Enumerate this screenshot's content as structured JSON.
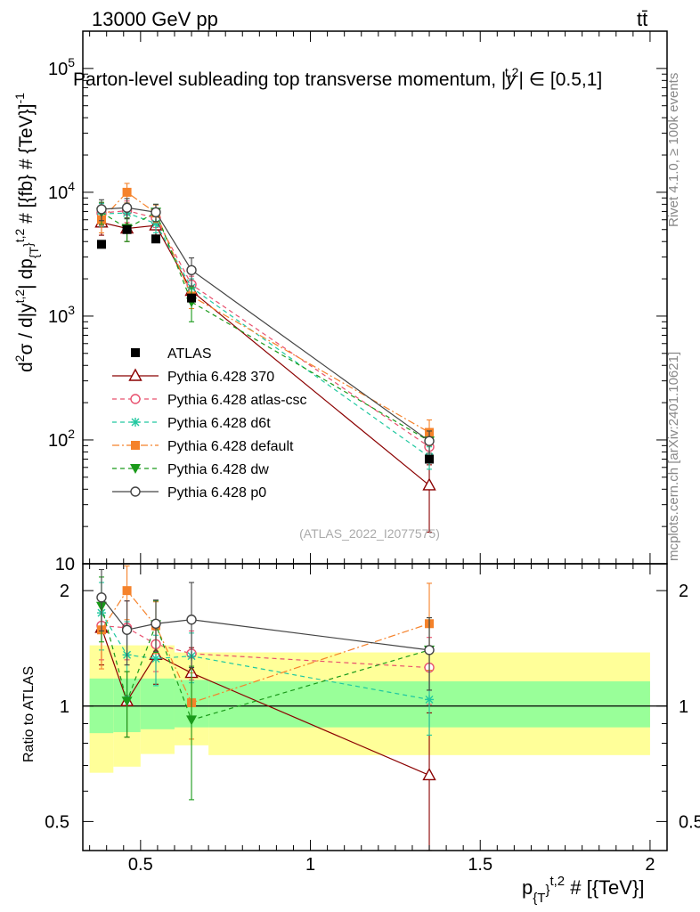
{
  "header": {
    "left": "13000 GeV pp",
    "right": "tt̄"
  },
  "side_labels": {
    "rivet": "Rivet 4.1.0, ≥ 100k events",
    "mcplots": "mcplots.cern.ch [arXiv:2401.10621]"
  },
  "watermark": "(ATLAS_2022_I2077575)",
  "colors": {
    "ATLAS": "#000000",
    "p370": "#8b0000",
    "atlas_csc": "#e8506e",
    "d6t": "#20c8a0",
    "default": "#f5822a",
    "dw": "#1a9a1a",
    "p0": "#444444",
    "band_inner": "#99ff99",
    "band_outer": "#ffff99"
  },
  "chart_data": [
    {
      "type": "scatter",
      "panel": "main",
      "title": "Parton-level subleading top transverse momentum, |y^{t,2}| ∈ [0.5,1]",
      "title_parts": {
        "main": "Parton-level subleading top transverse momentum, |",
        "yvar": "y",
        "ysup": "t,2",
        "tail": "| ∈ [0.5,1]"
      },
      "ylabel": "d²σ / d|y^{t,2}| dp_{T}^{t,2} # [{fb} # {TeV}]^{-1}",
      "ylabel_parts": {
        "a": "d",
        "a_sup": "2",
        "b": "σ / d|y",
        "b_sup": "t,2",
        "c": "| dp",
        "c_sub": "{T",
        "c_sup": "}",
        "c_sup2": "t,2",
        "d": " # [{fb} # {TeV}]",
        "d_sup": "-1"
      },
      "yscale": "log",
      "ylim": [
        10,
        200000
      ],
      "xlim": [
        0.33,
        2.05
      ],
      "ytick_labels": [
        {
          "value": 10,
          "base": "10",
          "exp": ""
        },
        {
          "value": 100,
          "base": "10",
          "exp": "2"
        },
        {
          "value": 1000,
          "base": "10",
          "exp": "3"
        },
        {
          "value": 10000,
          "base": "10",
          "exp": "4"
        },
        {
          "value": 100000,
          "base": "10",
          "exp": "5"
        }
      ],
      "x": [
        0.385,
        0.46,
        0.545,
        0.65,
        1.35
      ],
      "series": [
        {
          "name": "ATLAS",
          "key": "ATLAS",
          "marker": "square-filled",
          "line": "none",
          "values": [
            3800,
            5000,
            4200,
            1400,
            70
          ],
          "err_lo": [
            0,
            0,
            0,
            0,
            0
          ],
          "err_hi": [
            0,
            0,
            0,
            0,
            0
          ]
        },
        {
          "name": "Pythia 6.428 370",
          "key": "p370",
          "marker": "triangle-open",
          "line": "solid",
          "values": [
            5700,
            5100,
            5400,
            1600,
            43
          ],
          "err_lo": [
            1200,
            1100,
            900,
            300,
            25
          ],
          "err_hi": [
            1200,
            1100,
            900,
            300,
            20
          ]
        },
        {
          "name": "Pythia 6.428 atlas-csc",
          "key": "atlas_csc",
          "marker": "circle-open",
          "line": "dashed",
          "values": [
            6800,
            7100,
            6200,
            1800,
            88
          ],
          "err_lo": [
            1400,
            1400,
            1000,
            300,
            18
          ],
          "err_hi": [
            1400,
            1400,
            1000,
            300,
            18
          ]
        },
        {
          "name": "Pythia 6.428 d6t",
          "key": "d6t",
          "marker": "star",
          "line": "dashed",
          "values": [
            6700,
            6800,
            5600,
            1700,
            73
          ],
          "err_lo": [
            1400,
            1400,
            900,
            300,
            15
          ],
          "err_hi": [
            1400,
            1400,
            900,
            300,
            15
          ]
        },
        {
          "name": "Pythia 6.428 default",
          "key": "default",
          "marker": "square-filled",
          "line": "dashdot",
          "values": [
            6000,
            10000,
            6800,
            1450,
            115
          ],
          "err_lo": [
            1300,
            1800,
            1100,
            300,
            25
          ],
          "err_hi": [
            1300,
            1800,
            1100,
            300,
            30
          ]
        },
        {
          "name": "Pythia 6.428 dw",
          "key": "dw",
          "marker": "triangle-down-filled",
          "line": "dashed",
          "values": [
            6900,
            5100,
            6900,
            1300,
            98
          ],
          "err_lo": [
            1400,
            1100,
            1100,
            400,
            20
          ],
          "err_hi": [
            1400,
            1100,
            1100,
            400,
            20
          ]
        },
        {
          "name": "Pythia 6.428 p0",
          "key": "p0",
          "marker": "circle-open",
          "line": "solid",
          "values": [
            7300,
            7500,
            6900,
            2350,
            98
          ],
          "err_lo": [
            1400,
            1400,
            1100,
            600,
            20
          ],
          "err_hi": [
            1400,
            1400,
            1100,
            600,
            20
          ]
        }
      ]
    },
    {
      "type": "scatter",
      "panel": "ratio",
      "ylabel": "Ratio to ATLAS",
      "xlabel": "p_{T}^{t,2} # [{TeV}]",
      "xlabel_parts": {
        "a": "p",
        "a_sub": "{T",
        "a_sup_close": "}",
        "a_sup": "t,2",
        "b": " # [{TeV}]"
      },
      "yscale": "log",
      "ylim": [
        0.42,
        2.35
      ],
      "xlim": [
        0.33,
        2.05
      ],
      "xtick_labels": [
        "0.5",
        "1",
        "1.5",
        "2"
      ],
      "xtick_values": [
        0.5,
        1,
        1.5,
        2
      ],
      "ytick_labels": [
        "0.5",
        "1",
        "2"
      ],
      "ytick_values": [
        0.5,
        1,
        2
      ],
      "bands": {
        "edges": [
          0.35,
          0.42,
          0.5,
          0.6,
          0.7,
          2.0
        ],
        "inner_lo": [
          0.85,
          0.855,
          0.87,
          0.88,
          0.88
        ],
        "inner_hi": [
          1.18,
          1.18,
          1.18,
          1.17,
          1.16
        ],
        "outer_lo": [
          0.67,
          0.695,
          0.75,
          0.79,
          0.745
        ],
        "outer_hi": [
          1.44,
          1.44,
          1.44,
          1.38,
          1.38
        ]
      },
      "x": [
        0.385,
        0.46,
        0.545,
        0.65,
        1.35
      ],
      "series": [
        {
          "key": "p370",
          "values": [
            1.6,
            1.03,
            1.36,
            1.22,
            0.66
          ],
          "err_lo": [
            0.32,
            0.2,
            0.22,
            0.2,
            0.3
          ],
          "err_hi": [
            0.32,
            0.2,
            0.22,
            0.2,
            0.3
          ]
        },
        {
          "key": "atlas_csc",
          "values": [
            1.62,
            1.6,
            1.45,
            1.37,
            1.26
          ],
          "err_lo": [
            0.3,
            0.28,
            0.22,
            0.2,
            0.25
          ],
          "err_hi": [
            0.3,
            0.28,
            0.22,
            0.2,
            0.25
          ]
        },
        {
          "key": "d6t",
          "values": [
            1.75,
            1.36,
            1.33,
            1.35,
            1.04
          ],
          "err_lo": [
            0.35,
            0.3,
            0.2,
            0.2,
            0.2
          ],
          "err_hi": [
            0.35,
            0.3,
            0.2,
            0.2,
            0.2
          ]
        },
        {
          "key": "default",
          "values": [
            1.58,
            2.0,
            1.62,
            1.02,
            1.64
          ],
          "err_lo": [
            0.33,
            0.32,
            0.25,
            0.2,
            0.4
          ],
          "err_hi": [
            0.33,
            0.32,
            0.25,
            0.2,
            0.45
          ]
        },
        {
          "key": "dw",
          "values": [
            1.82,
            1.03,
            1.63,
            0.92,
            1.4
          ],
          "err_lo": [
            0.35,
            0.2,
            0.25,
            0.35,
            0.3
          ],
          "err_hi": [
            0.35,
            0.2,
            0.25,
            0.35,
            0.3
          ]
        },
        {
          "key": "p0",
          "values": [
            1.92,
            1.58,
            1.64,
            1.68,
            1.4
          ],
          "err_lo": [
            0.35,
            0.3,
            0.25,
            0.42,
            0.3
          ],
          "err_hi": [
            0.35,
            0.3,
            0.25,
            0.42,
            0.3
          ]
        }
      ]
    }
  ]
}
